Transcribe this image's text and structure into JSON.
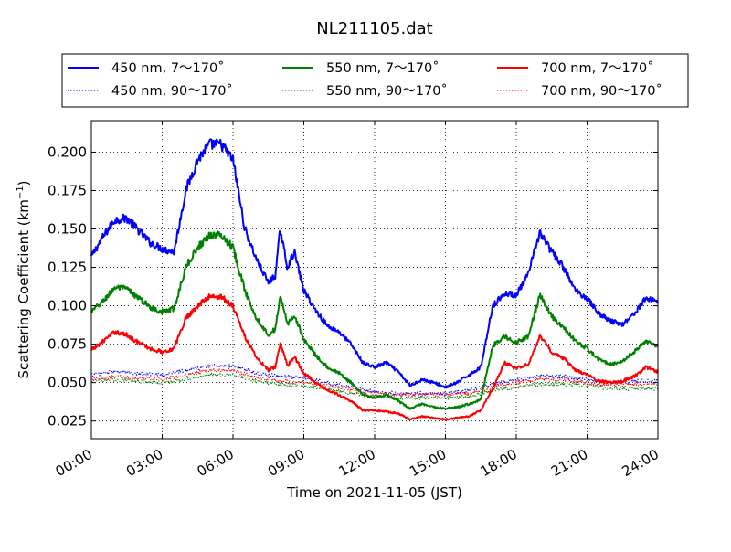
{
  "chart_data": {
    "type": "line",
    "title": "NL211105.dat",
    "xlabel": "Time on 2021-11-05 (JST)",
    "ylabel_main": "Scattering Coefficient (km",
    "ylabel_sup": "−1",
    "ylabel_close": ")",
    "xlim": [
      0,
      24
    ],
    "ylim": [
      0.0135,
      0.2205
    ],
    "xticks": [
      0,
      3,
      6,
      9,
      12,
      15,
      18,
      21,
      24
    ],
    "xtick_labels": [
      "00:00",
      "03:00",
      "06:00",
      "09:00",
      "12:00",
      "15:00",
      "18:00",
      "21:00",
      "24:00"
    ],
    "yticks": [
      0.025,
      0.05,
      0.075,
      0.1,
      0.125,
      0.15,
      0.175,
      0.2
    ],
    "ytick_labels": [
      "0.025",
      "0.050",
      "0.075",
      "0.100",
      "0.125",
      "0.150",
      "0.175",
      "0.200"
    ],
    "grid": true,
    "legend_position": "top",
    "series": [
      {
        "name": "450 nm, 7～170˚",
        "color": "#0000ff",
        "style": "solid",
        "x": [
          0,
          0.5,
          1,
          1.5,
          2,
          2.5,
          3,
          3.5,
          4,
          4.5,
          5,
          5.5,
          6,
          6.5,
          7,
          7.5,
          7.8,
          8,
          8.3,
          8.6,
          9,
          9.5,
          10,
          10.5,
          11,
          11.5,
          12,
          12.5,
          13,
          13.5,
          14,
          14.5,
          15,
          15.5,
          16,
          16.5,
          17,
          17.5,
          18,
          18.5,
          19,
          19.5,
          20,
          20.5,
          21,
          21.5,
          22,
          22.5,
          23,
          23.5,
          24
        ],
        "y": [
          0.132,
          0.145,
          0.156,
          0.157,
          0.149,
          0.141,
          0.137,
          0.135,
          0.175,
          0.195,
          0.205,
          0.205,
          0.195,
          0.15,
          0.13,
          0.115,
          0.12,
          0.15,
          0.125,
          0.135,
          0.11,
          0.097,
          0.087,
          0.083,
          0.075,
          0.063,
          0.06,
          0.063,
          0.057,
          0.048,
          0.052,
          0.05,
          0.047,
          0.05,
          0.055,
          0.06,
          0.1,
          0.108,
          0.107,
          0.12,
          0.148,
          0.135,
          0.125,
          0.11,
          0.105,
          0.095,
          0.09,
          0.088,
          0.095,
          0.105,
          0.103
        ]
      },
      {
        "name": "550 nm, 7～170˚",
        "color": "#008000",
        "style": "solid",
        "x": [
          0,
          0.5,
          1,
          1.5,
          2,
          2.5,
          3,
          3.5,
          4,
          4.5,
          5,
          5.5,
          6,
          6.5,
          7,
          7.5,
          7.8,
          8,
          8.3,
          8.6,
          9,
          9.5,
          10,
          10.5,
          11,
          11.5,
          12,
          12.5,
          13,
          13.5,
          14,
          14.5,
          15,
          15.5,
          16,
          16.5,
          17,
          17.5,
          18,
          18.5,
          19,
          19.5,
          20,
          20.5,
          21,
          21.5,
          22,
          22.5,
          23,
          23.5,
          24
        ],
        "y": [
          0.096,
          0.103,
          0.112,
          0.111,
          0.105,
          0.099,
          0.096,
          0.098,
          0.125,
          0.138,
          0.146,
          0.146,
          0.138,
          0.11,
          0.092,
          0.081,
          0.085,
          0.107,
          0.088,
          0.094,
          0.078,
          0.068,
          0.06,
          0.056,
          0.05,
          0.042,
          0.04,
          0.042,
          0.038,
          0.033,
          0.036,
          0.034,
          0.033,
          0.034,
          0.036,
          0.039,
          0.074,
          0.08,
          0.076,
          0.08,
          0.107,
          0.093,
          0.086,
          0.077,
          0.072,
          0.065,
          0.062,
          0.064,
          0.07,
          0.077,
          0.074
        ]
      },
      {
        "name": "700 nm, 7～170˚",
        "color": "#ff0000",
        "style": "solid",
        "x": [
          0,
          0.5,
          1,
          1.5,
          2,
          2.5,
          3,
          3.5,
          4,
          4.5,
          5,
          5.5,
          6,
          6.5,
          7,
          7.5,
          7.8,
          8,
          8.3,
          8.6,
          9,
          9.5,
          10,
          10.5,
          11,
          11.5,
          12,
          12.5,
          13,
          13.5,
          14,
          14.5,
          15,
          15.5,
          16,
          16.5,
          17,
          17.5,
          18,
          18.5,
          19,
          19.5,
          20,
          20.5,
          21,
          21.5,
          22,
          22.5,
          23,
          23.5,
          24
        ],
        "y": [
          0.071,
          0.077,
          0.083,
          0.081,
          0.076,
          0.072,
          0.07,
          0.072,
          0.092,
          0.1,
          0.106,
          0.106,
          0.1,
          0.08,
          0.066,
          0.058,
          0.06,
          0.076,
          0.061,
          0.067,
          0.056,
          0.05,
          0.045,
          0.042,
          0.038,
          0.032,
          0.032,
          0.031,
          0.03,
          0.026,
          0.028,
          0.027,
          0.026,
          0.027,
          0.028,
          0.032,
          0.046,
          0.063,
          0.059,
          0.062,
          0.08,
          0.07,
          0.066,
          0.058,
          0.055,
          0.051,
          0.05,
          0.051,
          0.054,
          0.06,
          0.057
        ]
      },
      {
        "name": "450 nm, 90～170˚",
        "color": "#0000ff",
        "style": "dotted",
        "x": [
          0,
          1,
          2,
          3,
          4,
          5,
          6,
          7,
          8,
          9,
          10,
          11,
          12,
          13,
          14,
          15,
          16,
          17,
          18,
          19,
          20,
          21,
          22,
          23,
          24
        ],
        "y": [
          0.055,
          0.057,
          0.056,
          0.055,
          0.058,
          0.061,
          0.061,
          0.056,
          0.054,
          0.053,
          0.05,
          0.047,
          0.044,
          0.043,
          0.043,
          0.043,
          0.045,
          0.049,
          0.052,
          0.054,
          0.054,
          0.052,
          0.05,
          0.051,
          0.051
        ]
      },
      {
        "name": "550 nm, 90～170˚",
        "color": "#008000",
        "style": "dotted",
        "x": [
          0,
          1,
          2,
          3,
          4,
          5,
          6,
          7,
          8,
          9,
          10,
          11,
          12,
          13,
          14,
          15,
          16,
          17,
          18,
          19,
          20,
          21,
          22,
          23,
          24
        ],
        "y": [
          0.051,
          0.052,
          0.051,
          0.05,
          0.052,
          0.055,
          0.055,
          0.051,
          0.049,
          0.048,
          0.046,
          0.043,
          0.041,
          0.04,
          0.04,
          0.04,
          0.041,
          0.045,
          0.047,
          0.049,
          0.049,
          0.048,
          0.046,
          0.046,
          0.046
        ]
      },
      {
        "name": "700 nm, 90～170˚",
        "color": "#ff0000",
        "style": "dotted",
        "x": [
          0,
          1,
          2,
          3,
          4,
          5,
          6,
          7,
          8,
          9,
          10,
          11,
          12,
          13,
          14,
          15,
          16,
          17,
          18,
          19,
          20,
          21,
          22,
          23,
          24
        ],
        "y": [
          0.052,
          0.054,
          0.053,
          0.052,
          0.055,
          0.058,
          0.058,
          0.053,
          0.051,
          0.05,
          0.048,
          0.045,
          0.043,
          0.042,
          0.042,
          0.042,
          0.043,
          0.047,
          0.05,
          0.052,
          0.052,
          0.05,
          0.048,
          0.049,
          0.049
        ]
      }
    ]
  }
}
